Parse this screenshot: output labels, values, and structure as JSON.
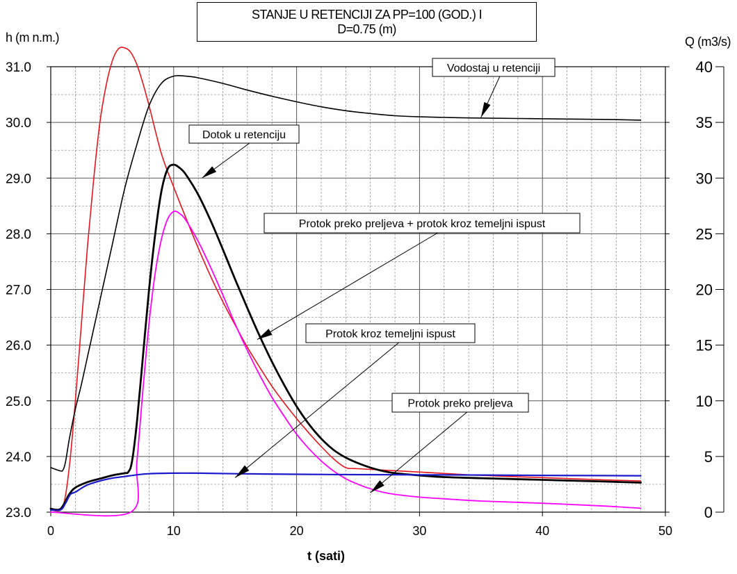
{
  "chart_data": {
    "type": "line",
    "title_line1": "STANJE U RETENCIJI ZA PP=100 (GOD.) I",
    "title_line2": "D=0.75 (m)",
    "xlabel": "t (sati)",
    "ylabel_left": "h (m n.m.)",
    "ylabel_right": "Q (m3/s)",
    "xlim": [
      0,
      50
    ],
    "ylim_left": [
      23.0,
      31.0
    ],
    "ylim_right": [
      0,
      40
    ],
    "x_ticks": [
      "0",
      "10",
      "20",
      "30",
      "40",
      "50"
    ],
    "y_left_ticks": [
      "23.0",
      "24.0",
      "25.0",
      "26.0",
      "27.0",
      "28.0",
      "29.0",
      "30.0",
      "31.0"
    ],
    "y_right_ticks": [
      "0",
      "5",
      "10",
      "15",
      "20",
      "25",
      "30",
      "35",
      "40"
    ],
    "grid": true,
    "colors": {
      "inflow": "#e8141b",
      "level": "#000000",
      "total": "#000000",
      "spillway": "#ff00ff",
      "outlet": "#1a1acc"
    },
    "annotations": [
      {
        "label": "Vodostaj u retenciji",
        "series": "level",
        "x": 35.0,
        "y": 30.09,
        "axis": "left"
      },
      {
        "label": "Dotok u retenciju",
        "series": "inflow",
        "x": 12.3,
        "y": 29.0,
        "axis": "left"
      },
      {
        "label": "Protok preko preljeva + protok kroz temeljni ispust",
        "series": "total",
        "x": 16.8,
        "y": 26.1,
        "axis": "left"
      },
      {
        "label": "Protok kroz temeljni ispust",
        "series": "outlet",
        "x": 15.0,
        "y": 23.62,
        "axis": "left"
      },
      {
        "label": "Protok preko preljeva",
        "series": "spillway",
        "x": 26.0,
        "y": 23.35,
        "axis": "left"
      }
    ],
    "series": [
      {
        "key": "inflow",
        "axis": "right",
        "x": [
          0,
          0.8,
          1.2,
          1.6,
          2,
          2.5,
          3,
          3.5,
          4,
          4.5,
          5,
          5.5,
          6,
          6.5,
          7,
          7.5,
          8,
          9,
          10,
          11,
          12,
          13,
          14,
          15,
          16,
          17,
          18,
          19,
          20,
          21,
          22,
          23,
          24,
          25,
          30,
          35,
          40,
          45,
          48
        ],
        "y": [
          0.2,
          0.2,
          1.5,
          5,
          10,
          17,
          24,
          30,
          35,
          38.3,
          40.5,
          41.6,
          41.7,
          41.3,
          40.2,
          38.5,
          36.5,
          32.2,
          29.2,
          26.4,
          23.7,
          21.2,
          18.9,
          16.8,
          14.8,
          13.0,
          11.3,
          9.8,
          8.4,
          7.1,
          5.9,
          4.8,
          4.0,
          3.9,
          3.6,
          3.3,
          3.1,
          2.9,
          2.8
        ]
      },
      {
        "key": "level",
        "axis": "left",
        "x": [
          0,
          0.8,
          1.0,
          1.2,
          1.5,
          2,
          2.5,
          3,
          4,
          5,
          6,
          7,
          8,
          9,
          10,
          11,
          12,
          14,
          16,
          18,
          20,
          22,
          24,
          26,
          28,
          30,
          34,
          38,
          42,
          46,
          48
        ],
        "y": [
          23.8,
          23.74,
          23.76,
          23.9,
          24.3,
          24.85,
          25.3,
          25.8,
          26.8,
          27.8,
          28.8,
          29.6,
          30.3,
          30.7,
          30.83,
          30.83,
          30.8,
          30.7,
          30.58,
          30.47,
          30.37,
          30.28,
          30.21,
          30.16,
          30.12,
          30.1,
          30.08,
          30.07,
          30.06,
          30.05,
          30.04
        ]
      },
      {
        "key": "total",
        "axis": "right",
        "x": [
          0,
          0.8,
          1.5,
          2,
          3,
          4,
          5,
          6,
          6.3,
          6.6,
          7,
          7.5,
          8,
          8.5,
          9,
          9.5,
          10,
          10.5,
          11,
          12,
          13,
          14,
          15,
          16,
          17,
          18,
          19,
          20,
          21,
          22,
          23,
          24,
          25,
          26,
          27,
          28,
          30,
          32,
          35,
          40,
          45,
          48
        ],
        "y": [
          0.3,
          0.3,
          1.6,
          2.2,
          2.7,
          3.0,
          3.3,
          3.5,
          3.6,
          4.5,
          8,
          14,
          20,
          25,
          28.8,
          30.8,
          31.2,
          30.9,
          30.3,
          28.5,
          26.2,
          23.6,
          20.9,
          18.3,
          15.8,
          13.5,
          11.4,
          9.5,
          7.9,
          6.6,
          5.6,
          4.9,
          4.4,
          4.0,
          3.7,
          3.5,
          3.3,
          3.15,
          3.05,
          2.9,
          2.75,
          2.65
        ]
      },
      {
        "key": "spillway",
        "axis": "right",
        "x": [
          0,
          6.5,
          7,
          7.5,
          8,
          8.5,
          9,
          9.5,
          10,
          10.5,
          11,
          12,
          13,
          14,
          15,
          16,
          17,
          18,
          19,
          20,
          21,
          22,
          23,
          24,
          25,
          26,
          27,
          28,
          30,
          32,
          35,
          40,
          45,
          48
        ],
        "y": [
          0,
          0,
          4.5,
          11,
          17,
          21.5,
          24.5,
          26.3,
          27.0,
          26.8,
          26.2,
          24.3,
          22.0,
          19.5,
          16.9,
          14.5,
          12.3,
          10.3,
          8.6,
          7.0,
          5.7,
          4.6,
          3.7,
          3.0,
          2.5,
          2.1,
          1.8,
          1.6,
          1.35,
          1.2,
          1.0,
          0.8,
          0.55,
          0.35
        ]
      },
      {
        "key": "outlet",
        "axis": "right",
        "x": [
          0,
          0.8,
          1.2,
          1.6,
          2,
          2.5,
          3,
          4,
          5,
          6,
          7,
          8,
          10,
          12,
          15,
          20,
          25,
          30,
          35,
          40,
          45,
          48
        ],
        "y": [
          0.2,
          0.2,
          0.8,
          1.6,
          1.8,
          2.15,
          2.45,
          2.8,
          3.05,
          3.2,
          3.35,
          3.45,
          3.5,
          3.5,
          3.45,
          3.4,
          3.37,
          3.35,
          3.33,
          3.3,
          3.28,
          3.27
        ]
      }
    ]
  }
}
